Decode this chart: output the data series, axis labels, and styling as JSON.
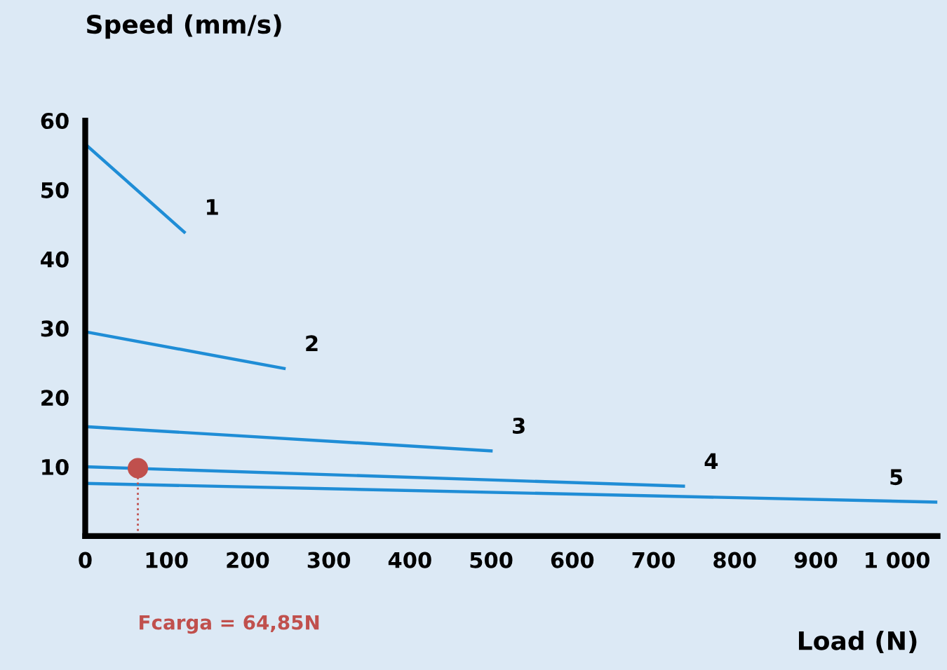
{
  "chart_data": {
    "type": "line",
    "xlabel": "Load (N)",
    "ylabel": "Speed (mm/s)",
    "series": [
      {
        "name": "1",
        "color": "#1f8dd6",
        "x": [
          0,
          122
        ],
        "values": [
          56.6,
          43.9
        ]
      },
      {
        "name": "2",
        "color": "#1f8dd6",
        "x": [
          0,
          245
        ],
        "values": [
          29.5,
          24.2
        ]
      },
      {
        "name": "3",
        "color": "#1f8dd6",
        "x": [
          0,
          500
        ],
        "values": [
          15.8,
          12.3
        ]
      },
      {
        "name": "4",
        "color": "#1f8dd6",
        "x": [
          0,
          737
        ],
        "values": [
          10,
          7.2
        ]
      },
      {
        "name": "5",
        "color": "#1f8dd6",
        "x": [
          0,
          1048
        ],
        "values": [
          7.6,
          4.9
        ]
      },
      {
        "type": "scatter",
        "color": "#c0504d",
        "x": [
          64.85
        ],
        "values": [
          9.8
        ]
      }
    ],
    "ref_lines": [
      {
        "axis": "x",
        "value": 64.85,
        "label": "Fcarga = 64,85N",
        "color": "#c0504d",
        "line_style": "dotted"
      }
    ],
    "xlim": [
      0,
      1050
    ],
    "ylim": [
      0,
      60
    ],
    "xticks": [
      0,
      100,
      200,
      300,
      400,
      500,
      600,
      700,
      800,
      900,
      {
        "value": 1000,
        "label": "1 000"
      }
    ],
    "yticks": [
      10,
      20,
      30,
      40,
      50,
      60
    ],
    "grid": false,
    "legend": false,
    "line_style": "solid"
  }
}
